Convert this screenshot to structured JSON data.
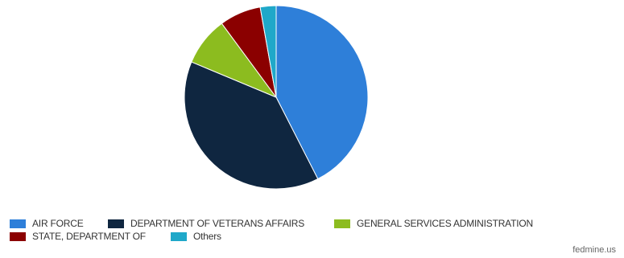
{
  "chart_data": {
    "type": "pie",
    "title": "",
    "slices": [
      {
        "label": "AIR FORCE",
        "value": 42.5,
        "color": "#2e7fd9"
      },
      {
        "label": "DEPARTMENT OF VETERANS AFFAIRS",
        "value": 38.8,
        "color": "#0f2640"
      },
      {
        "label": "GENERAL SERVICES ADMINISTRATION",
        "value": 8.6,
        "color": "#8cbc1f"
      },
      {
        "label": "STATE, DEPARTMENT OF",
        "value": 7.3,
        "color": "#8b0000"
      },
      {
        "label": "Others",
        "value": 2.8,
        "color": "#1fa8c9"
      }
    ],
    "legend_position": "bottom-left"
  },
  "credit": "fedmine.us"
}
